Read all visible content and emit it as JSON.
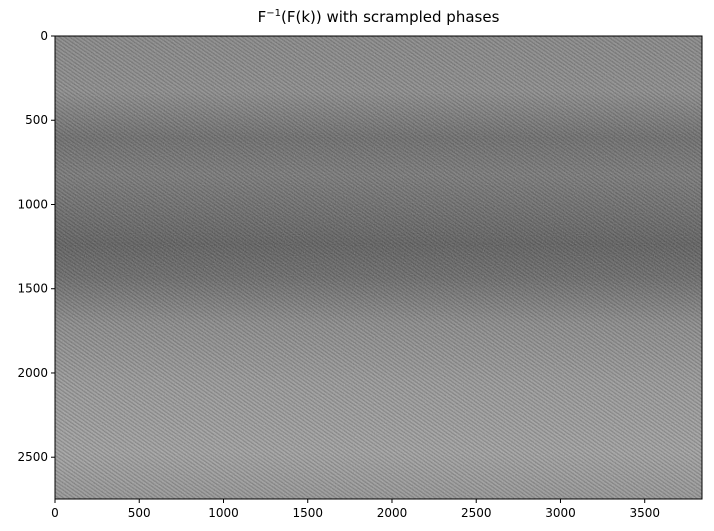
{
  "chart_data": {
    "type": "heatmap",
    "title": {
      "base": "F",
      "superscript": "−1",
      "rest": "(F(k)) with scrampled phases"
    },
    "colormap": "gray",
    "image_extent": {
      "x": [
        0,
        3840
      ],
      "y": [
        0,
        2748
      ]
    },
    "y_axis_inverted": true,
    "xticks": [
      0,
      500,
      1000,
      1500,
      2000,
      2500,
      3000,
      3500
    ],
    "yticks": [
      0,
      500,
      1000,
      1500,
      2000,
      2500
    ],
    "description_colors": {
      "mid_gray": "#8c8c8c",
      "dark_band": "#5f5f5f",
      "light_band": "#a8a8a8"
    }
  }
}
